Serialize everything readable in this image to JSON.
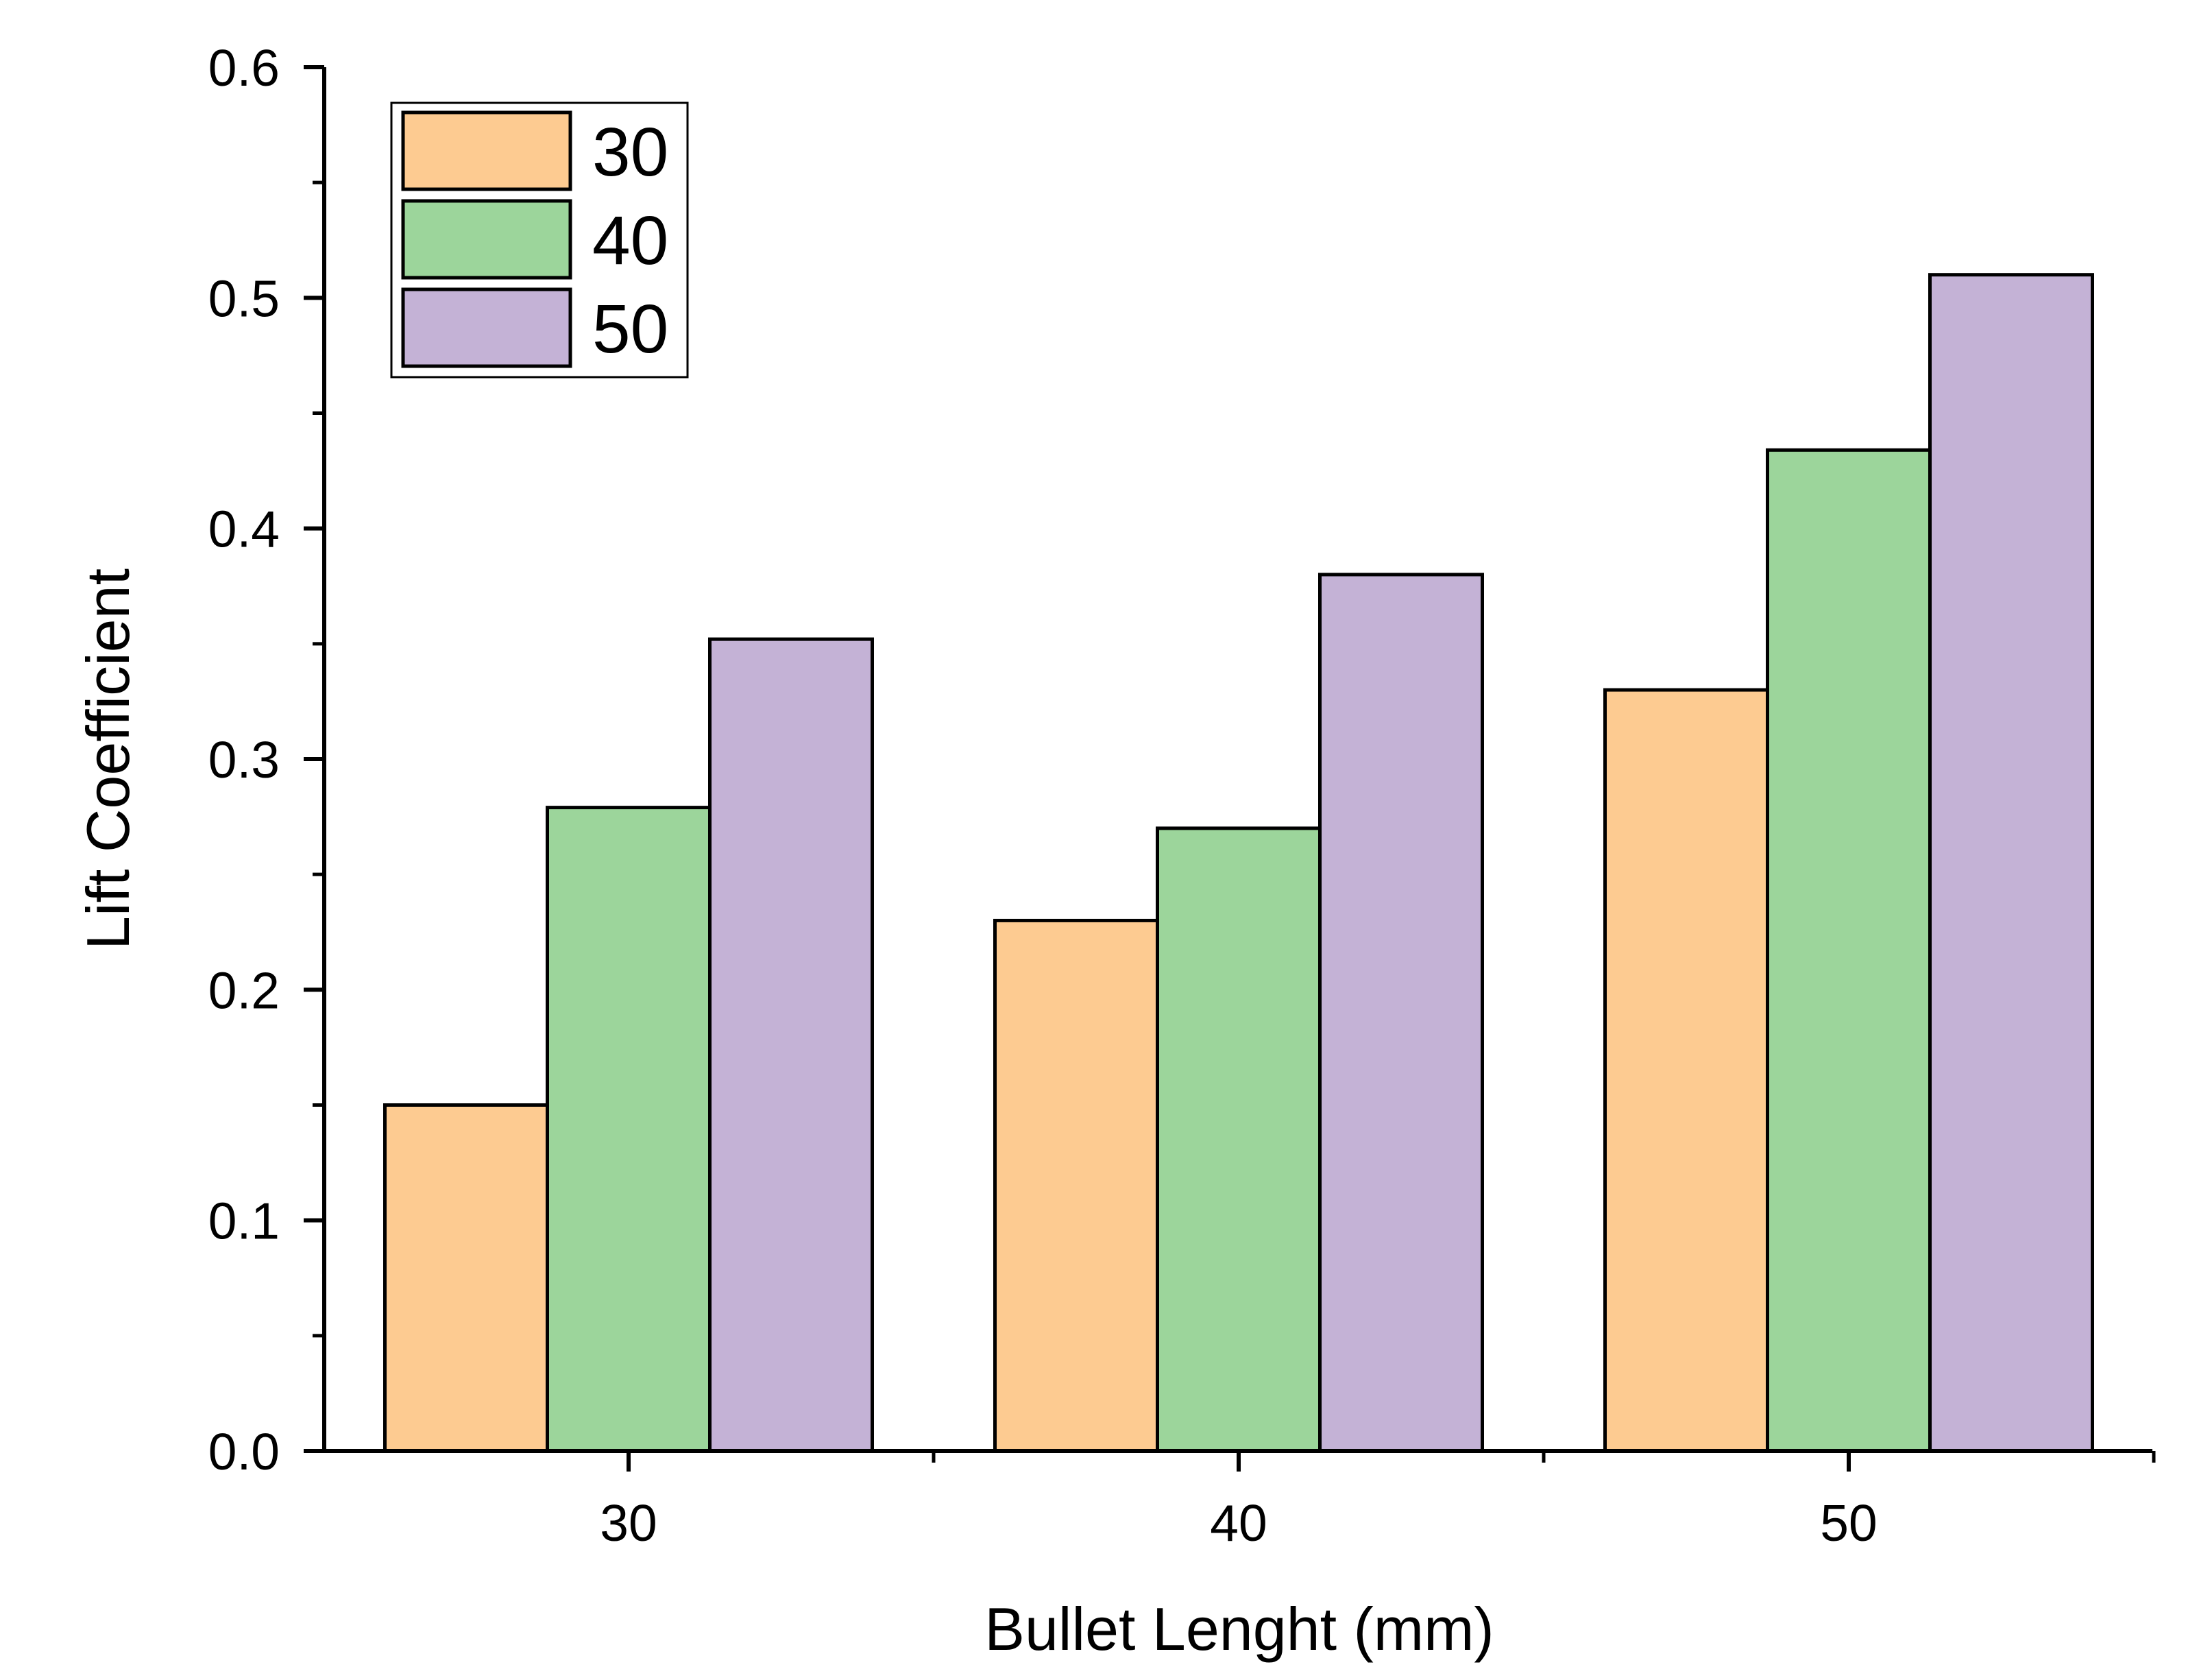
{
  "chart_data": {
    "type": "bar",
    "title": "",
    "xlabel": "Bullet Lenght (mm)",
    "ylabel": "Lift Coefficient",
    "categories": [
      "30",
      "40",
      "50"
    ],
    "series": [
      {
        "name": "30",
        "values": [
          0.15,
          0.23,
          0.33
        ],
        "color": "#FDCB91"
      },
      {
        "name": "40",
        "values": [
          0.279,
          0.27,
          0.434
        ],
        "color": "#9CD59B"
      },
      {
        "name": "50",
        "values": [
          0.352,
          0.38,
          0.51
        ],
        "color": "#C4B2D6"
      }
    ],
    "ylim": [
      0,
      0.6
    ],
    "yticks": [
      "0.0",
      "0.1",
      "0.2",
      "0.3",
      "0.4",
      "0.5",
      "0.6"
    ],
    "ytick_values": [
      0,
      0.1,
      0.2,
      0.3,
      0.4,
      0.5,
      0.6
    ],
    "grid": false,
    "legend_position": "top-left"
  }
}
